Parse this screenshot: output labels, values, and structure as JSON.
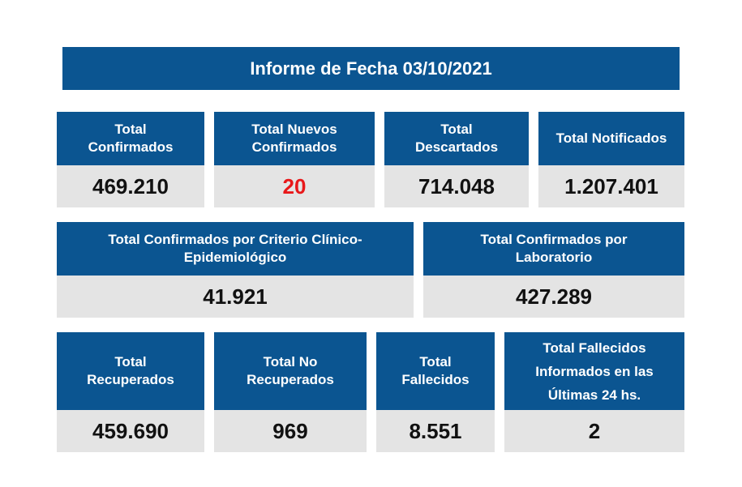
{
  "title": "Informe de Fecha 03/10/2021",
  "row1": [
    {
      "label": "Total\nConfirmados",
      "value": "469.210"
    },
    {
      "label": "Total Nuevos\nConfirmados",
      "value": "20"
    },
    {
      "label": "Total\nDescartados",
      "value": "714.048"
    },
    {
      "label": "Total Notificados",
      "value": "1.207.401"
    }
  ],
  "row2": [
    {
      "label": "Total Confirmados por Criterio Clínico-\nEpidemiológico",
      "value": "41.921"
    },
    {
      "label": "Total Confirmados por\nLaboratorio",
      "value": "427.289"
    }
  ],
  "row3": [
    {
      "label": "Total\nRecuperados",
      "value": "459.690"
    },
    {
      "label": "Total No\nRecuperados",
      "value": "969"
    },
    {
      "label": "Total\nFallecidos",
      "value": "8.551"
    },
    {
      "label": "Total Fallecidos\nInformados en las\nÚltimas 24 hs.",
      "value": "2"
    }
  ],
  "colors": {
    "header_bg": "#0b5591",
    "value_bg": "#e4e4e4",
    "highlight": "#e8181a"
  }
}
